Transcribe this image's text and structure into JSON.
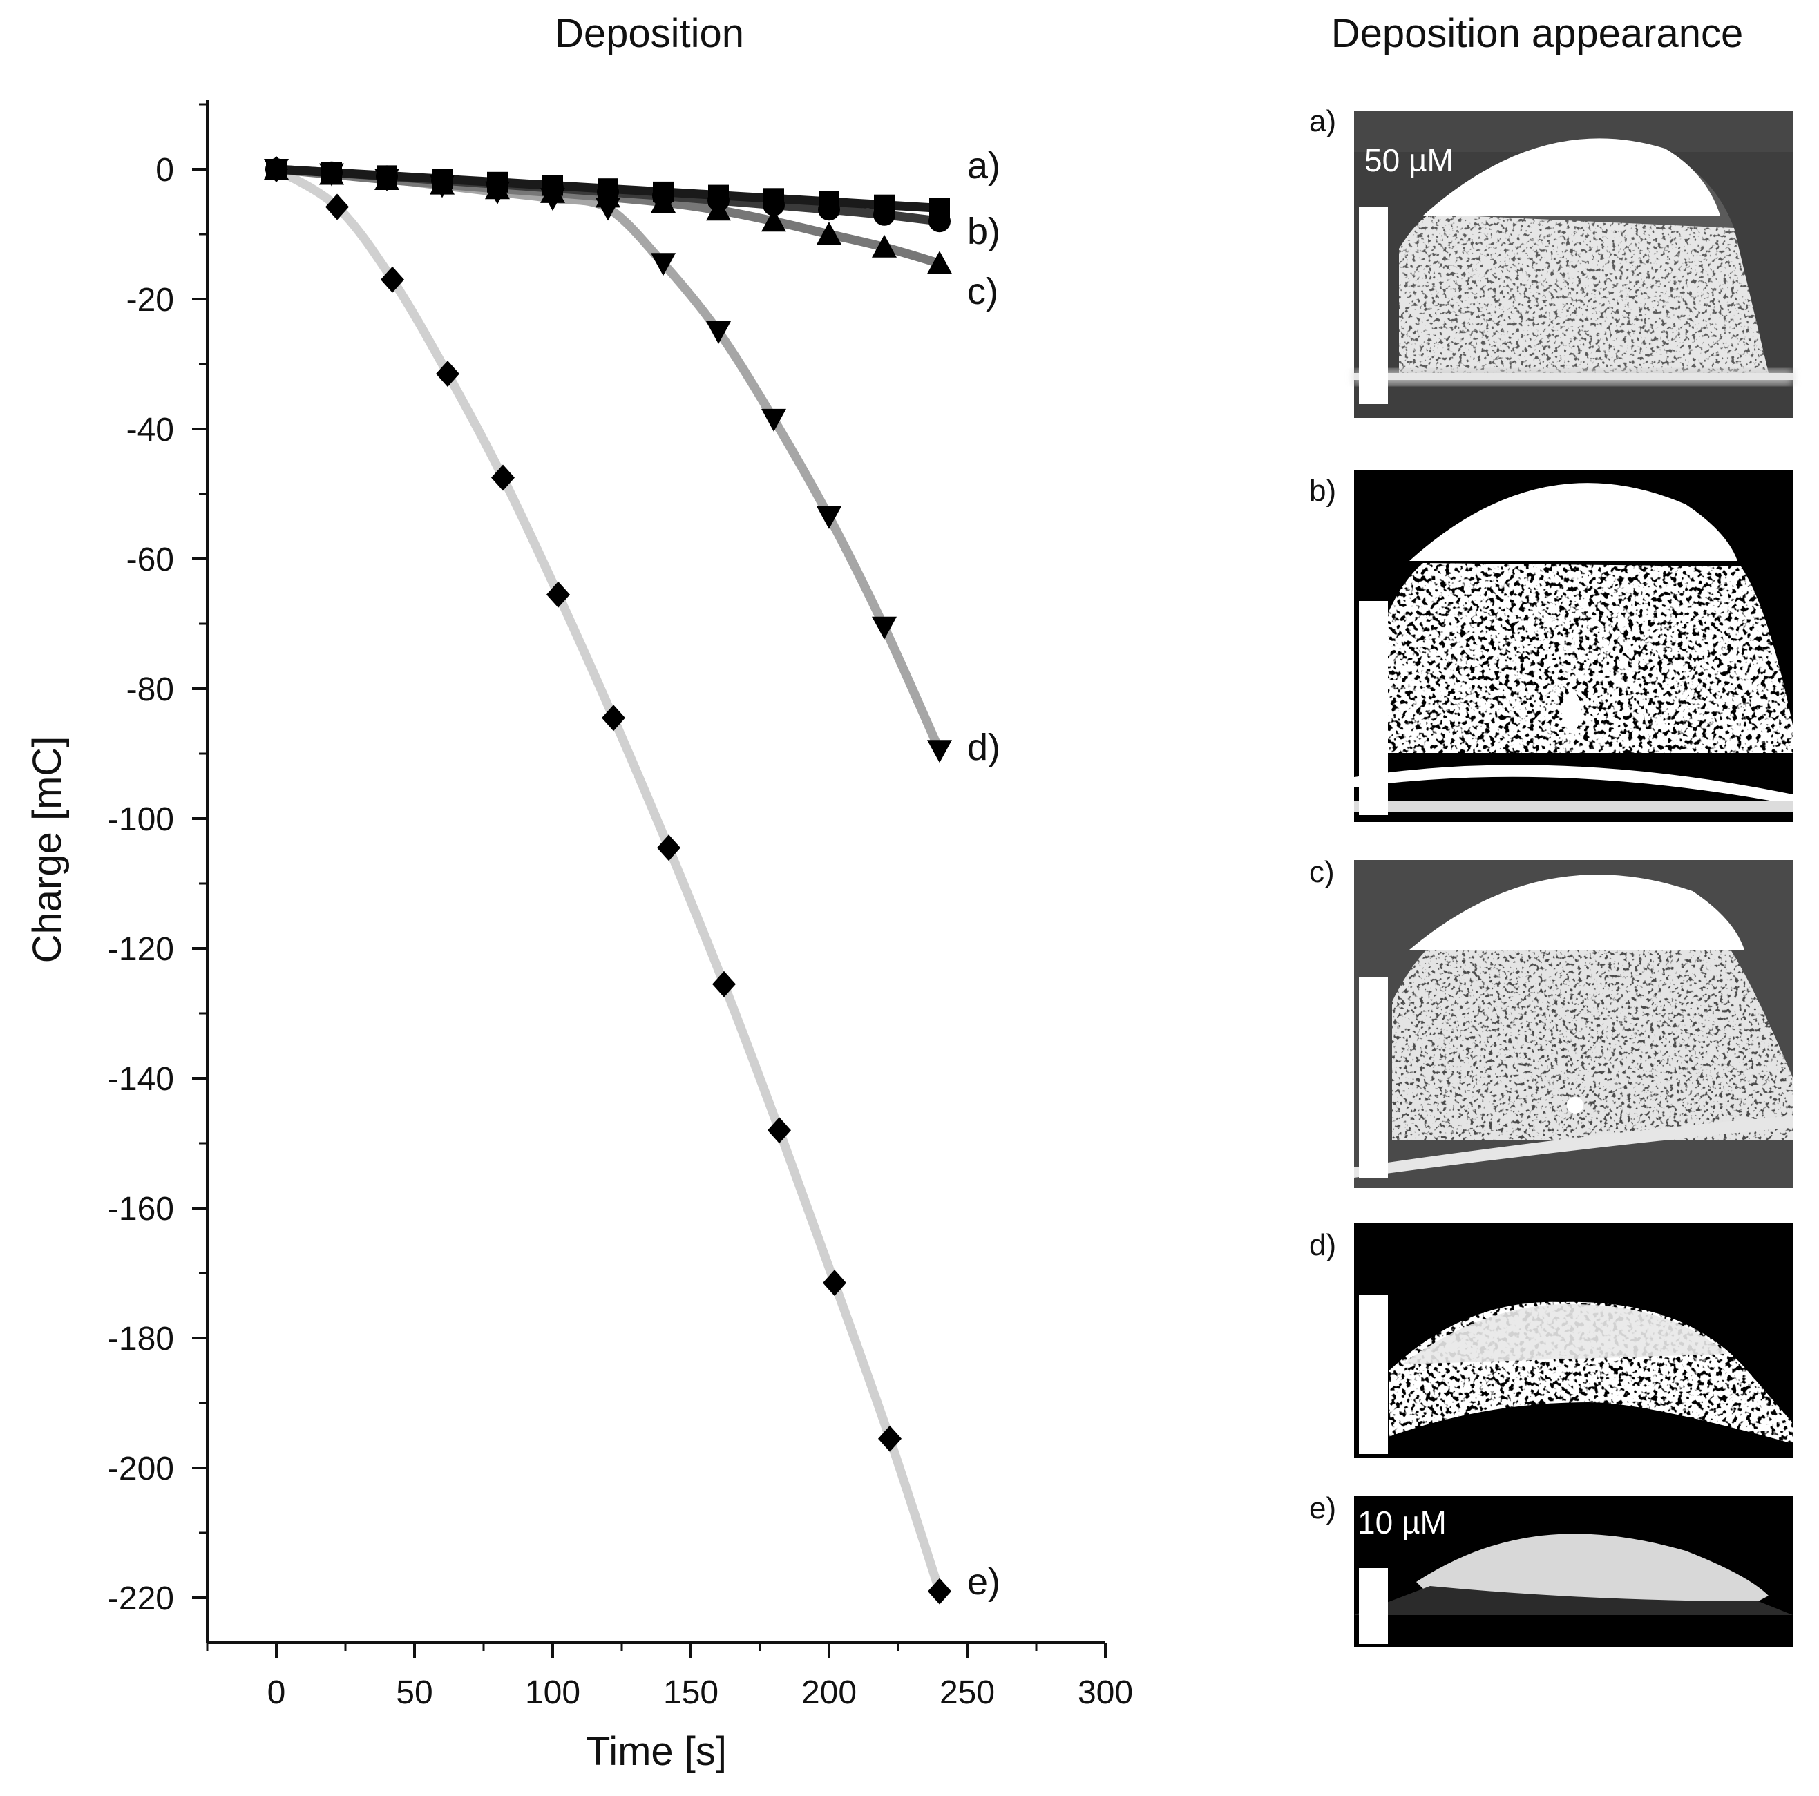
{
  "chart_data": {
    "type": "line",
    "title": "Deposition",
    "xlabel": "Time [s]",
    "ylabel": "Charge [mC]",
    "xlim": [
      -25,
      300
    ],
    "ylim": [
      -225,
      10
    ],
    "xticks": [
      0,
      50,
      100,
      150,
      200,
      250,
      300
    ],
    "yticks": [
      0,
      -20,
      -40,
      -60,
      -80,
      -100,
      -120,
      -140,
      -160,
      -180,
      -200,
      -220
    ],
    "grid": false,
    "series": [
      {
        "name": "a)",
        "marker": "square",
        "line_color": "#1a1a1a",
        "x": [
          0,
          20,
          40,
          60,
          80,
          100,
          120,
          140,
          160,
          180,
          200,
          220,
          240
        ],
        "y": [
          0,
          -0.5,
          -1,
          -1.5,
          -2,
          -2.5,
          -3,
          -3.5,
          -4,
          -4.5,
          -5,
          -5.5,
          -6
        ]
      },
      {
        "name": "b)",
        "marker": "circle",
        "line_color": "#3a3a3a",
        "x": [
          0,
          20,
          40,
          60,
          80,
          100,
          120,
          140,
          160,
          180,
          200,
          220,
          240
        ],
        "y": [
          0,
          -0.5,
          -1.1,
          -1.7,
          -2.3,
          -2.9,
          -3.5,
          -4.1,
          -4.8,
          -5.5,
          -6.2,
          -7,
          -8
        ]
      },
      {
        "name": "c)",
        "marker": "triangle-up",
        "line_color": "#777777",
        "x": [
          0,
          20,
          40,
          60,
          80,
          100,
          120,
          140,
          160,
          180,
          200,
          220,
          240
        ],
        "y": [
          0,
          -0.8,
          -1.6,
          -2.3,
          -3,
          -3.6,
          -4.3,
          -5.1,
          -6.3,
          -8,
          -10,
          -12,
          -14.5
        ]
      },
      {
        "name": "d)",
        "marker": "triangle-down",
        "line_color": "#a6a6a6",
        "x": [
          0,
          20,
          40,
          60,
          80,
          100,
          120,
          140,
          160,
          180,
          200,
          220,
          240
        ],
        "y": [
          0,
          -0.7,
          -1.5,
          -2.5,
          -3.5,
          -4.5,
          -6,
          -14.5,
          -25,
          -38.5,
          -53.5,
          -70.5,
          -89.5
        ]
      },
      {
        "name": "e)",
        "marker": "diamond",
        "line_color": "#d0d0d0",
        "x": [
          0,
          22,
          42,
          62,
          82,
          102,
          122,
          142,
          162,
          182,
          202,
          222,
          240
        ],
        "y": [
          0,
          -5.8,
          -17,
          -31.5,
          -47.5,
          -65.5,
          -84.5,
          -104.5,
          -125.5,
          -148,
          -171.5,
          -195.5,
          -219
        ]
      }
    ]
  },
  "appearance": {
    "title": "Deposition appearance",
    "panels": [
      {
        "tag": "a)",
        "scale_text": "50 µM"
      },
      {
        "tag": "b)"
      },
      {
        "tag": "c)"
      },
      {
        "tag": "d)"
      },
      {
        "tag": "e)",
        "scale_text": "10 µM"
      }
    ]
  }
}
